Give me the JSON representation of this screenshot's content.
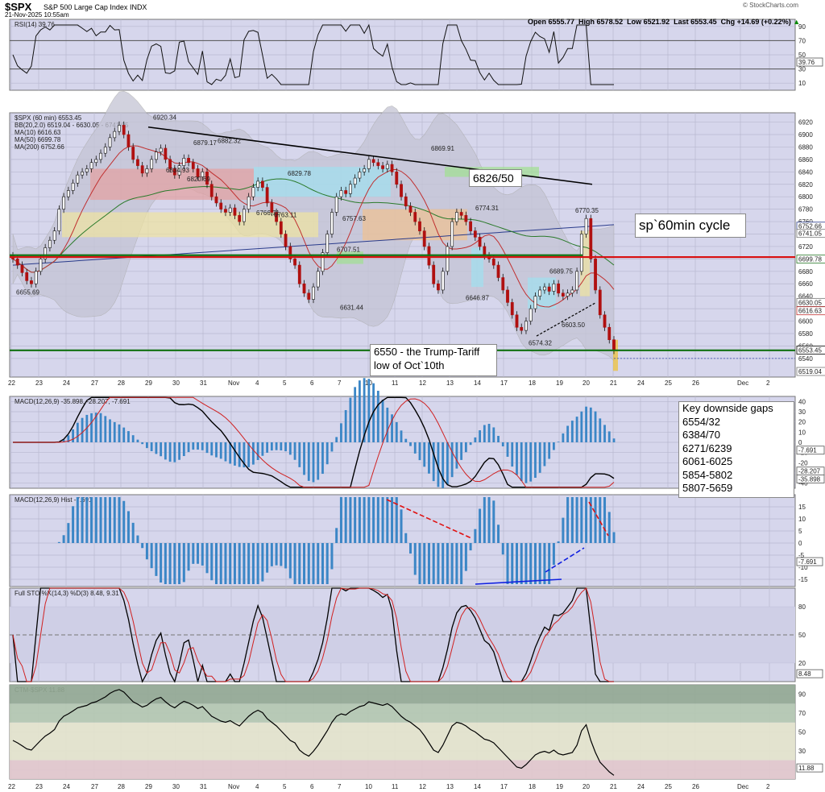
{
  "header": {
    "symbol": "$SPX",
    "name": "S&P 500 Large Cap Index",
    "exchange": "INDX",
    "datetime": "21-Nov-2025 10:55am",
    "watermark": "© StockCharts.com",
    "ohlc_text": "Open 6555.77  High 6578.52  Low 6521.92  Last 6553.45  Chg +14.69 (+0.22%)",
    "chg_arrow": "▲"
  },
  "annotations": {
    "cycle": "sp`60min cycle",
    "level_6826": "6826/50",
    "trump_line1": "6550 - the Trump-Tariff",
    "trump_line2": "low of Oct`10th",
    "gaps_title": "Key downside gaps",
    "gaps": [
      "6554/32",
      "6384/70",
      "6271/6239",
      "6061-6025",
      "5854-5802",
      "5807-5659"
    ]
  },
  "colors": {
    "panel_bg": "#d6d6ec",
    "grid": "#b8b8d0",
    "up": "#ffffff",
    "down": "#b01010",
    "hist": "#3b86c6",
    "red_line": "#d81010",
    "green_line": "#107010",
    "ma200": "#2a3c8c"
  },
  "chart_data": [
    {
      "panel": "RSI",
      "type": "line",
      "legend": "RSI(14) 39.76",
      "y_ticks": [
        10,
        30,
        50,
        70,
        90
      ],
      "current_label": "39.76",
      "ylim": [
        0,
        100
      ]
    },
    {
      "panel": "Price",
      "type": "candlestick",
      "legend": [
        "$SPX (60 min) 6553.45",
        "BB(20,2.0) 6519.04 - 6630.05 - 6741.05",
        "MA(10) 6616.63",
        "MA(50) 6699.78",
        "MA(200) 6752.66"
      ],
      "y_ticks": [
        6540,
        6560,
        6580,
        6600,
        6620,
        6640,
        6660,
        6680,
        6700,
        6720,
        6740,
        6760,
        6780,
        6800,
        6820,
        6840,
        6860,
        6880,
        6900,
        6920
      ],
      "ylim": [
        6510,
        6935
      ],
      "price_labels": [
        {
          "text": "6920.34",
          "value": 6920.34
        },
        {
          "text": "6879.17",
          "value": 6879.17
        },
        {
          "text": "6882.32",
          "value": 6882.32
        },
        {
          "text": "6834.93",
          "value": 6834.93
        },
        {
          "text": "6820.69",
          "value": 6820.69
        },
        {
          "text": "6829.78",
          "value": 6829.78
        },
        {
          "text": "6869.91",
          "value": 6869.91
        },
        {
          "text": "6757.63",
          "value": 6757.63
        },
        {
          "text": "6766.71",
          "value": 6766.71
        },
        {
          "text": "6763.11",
          "value": 6763.11
        },
        {
          "text": "6774.31",
          "value": 6774.31
        },
        {
          "text": "6770.35",
          "value": 6770.35
        },
        {
          "text": "6707.51",
          "value": 6707.51
        },
        {
          "text": "6655.69",
          "value": 6655.69
        },
        {
          "text": "6631.44",
          "value": 6631.44
        },
        {
          "text": "6646.87",
          "value": 6646.87
        },
        {
          "text": "6689.75",
          "value": 6689.75
        },
        {
          "text": "6603.50",
          "value": 6603.5
        },
        {
          "text": "6574.32",
          "value": 6574.32
        }
      ],
      "right_labels": [
        {
          "text": "6752.66",
          "value": 6752.66
        },
        {
          "text": "6741.05",
          "value": 6741.05
        },
        {
          "text": "6699.78",
          "value": 6699.78
        },
        {
          "text": "6630.05",
          "value": 6630.05
        },
        {
          "text": "6616.63",
          "value": 6616.63
        },
        {
          "text": "6553.45",
          "value": 6553.45
        },
        {
          "text": "6519.04",
          "value": 6519.04
        }
      ],
      "levels": {
        "red": 6703,
        "green_upper": 6706,
        "green_lower": 6553
      }
    },
    {
      "panel": "MACD",
      "type": "line",
      "legend": "MACD(12,26,9) -35.898, -28.207, -7.691",
      "y_ticks": [
        -40,
        -30,
        -20,
        -10,
        0,
        10,
        20,
        30,
        40
      ],
      "right_labels": [
        "-7.691",
        "-28.207",
        "-35.898"
      ],
      "ylim": [
        -45,
        45
      ]
    },
    {
      "panel": "MACD Hist",
      "type": "bar",
      "legend": "MACD(12,26,9) Hist -7.691",
      "y_ticks": [
        -15,
        -10,
        -5,
        0,
        5,
        10,
        15
      ],
      "current_label": "-7.691",
      "ylim": [
        -18,
        20
      ]
    },
    {
      "panel": "Full STO",
      "type": "line",
      "legend": "Full STO %K(14,3) %D(3) 8.48, 9.31",
      "y_ticks": [
        20,
        50,
        80
      ],
      "current_label": "8.48",
      "ylim": [
        0,
        100
      ]
    },
    {
      "panel": "CTM",
      "type": "line",
      "legend": "CTM-$SPX 11.88",
      "y_ticks": [
        10,
        30,
        50,
        70,
        90
      ],
      "current_label": "11.88",
      "ylim": [
        0,
        100
      ]
    }
  ],
  "x_axis": {
    "labels": [
      "22",
      "23",
      "24",
      "27",
      "28",
      "29",
      "30",
      "31",
      "Nov",
      "4",
      "5",
      "6",
      "7",
      "10",
      "11",
      "12",
      "13",
      "14",
      "17",
      "18",
      "19",
      "20",
      "21",
      "24",
      "25",
      "26",
      "Dec",
      "2"
    ]
  }
}
